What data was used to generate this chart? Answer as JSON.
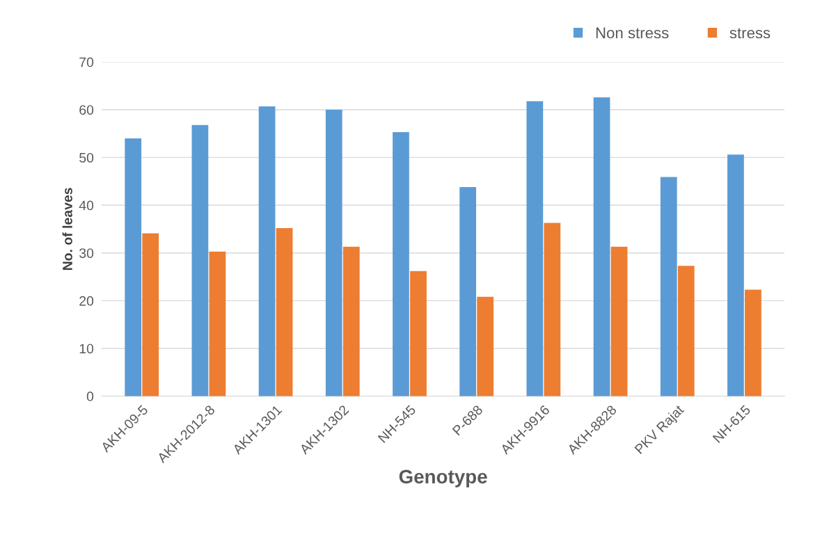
{
  "chart_data": {
    "type": "bar",
    "xlabel": "Genotype",
    "ylabel": "No. of leaves",
    "categories": [
      "AKH-09-5",
      "AKH-2012-8",
      "AKH-1301",
      "AKH-1302",
      "NH-545",
      "P-688",
      "AKH-9916",
      "AKH-8828",
      "PKV Rajat",
      "NH-615"
    ],
    "series": [
      {
        "name": "Non stress",
        "color": "#5b9bd5",
        "values": [
          54.0,
          56.8,
          60.7,
          60.0,
          55.3,
          43.8,
          61.8,
          62.6,
          45.9,
          50.6
        ]
      },
      {
        "name": "stress",
        "color": "#ed7d31",
        "values": [
          34.1,
          30.3,
          35.2,
          31.3,
          26.2,
          20.8,
          36.3,
          31.3,
          27.3,
          22.3
        ]
      }
    ],
    "ylim": [
      0,
      70
    ],
    "yticks": [
      0,
      10,
      20,
      30,
      40,
      50,
      60,
      70
    ],
    "grid": "y",
    "legend": "top right"
  }
}
